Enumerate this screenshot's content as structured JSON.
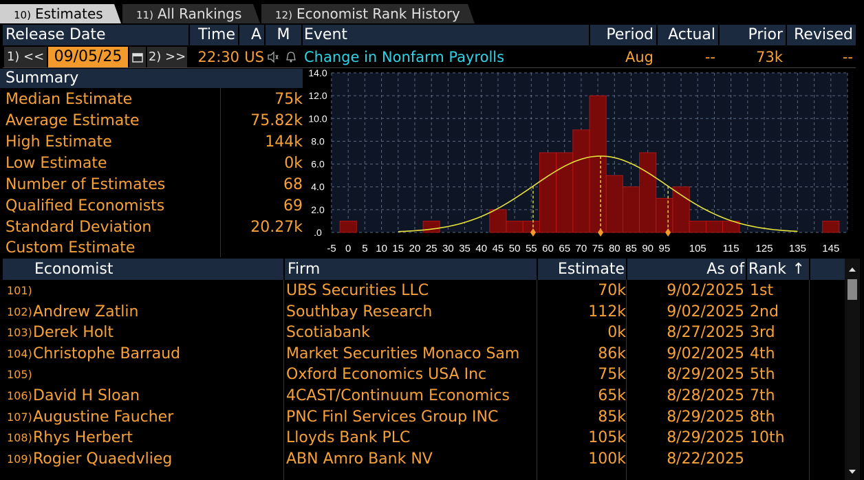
{
  "tabs": [
    {
      "num": "10)",
      "label": "Estimates",
      "active": true
    },
    {
      "num": "11)",
      "label": "All Rankings",
      "active": false
    },
    {
      "num": "12)",
      "label": "Economist Rank History",
      "active": false
    }
  ],
  "header": {
    "release_date": "Release Date",
    "time": "Time",
    "a": "A",
    "m": "M",
    "event": "Event",
    "period": "Period",
    "actual": "Actual",
    "prior": "Prior",
    "revised": "Revised"
  },
  "release_row": {
    "prev_btn": "1) <<",
    "date": "09/05/25",
    "next_btn": "2) >>",
    "time": "22:30",
    "country": "US",
    "event": "Change in Nonfarm Payrolls",
    "period": "Aug",
    "actual": "--",
    "prior": "73k",
    "revised": "--"
  },
  "summary": {
    "title": "Summary",
    "rows": [
      {
        "label": "Median Estimate",
        "value": "75k"
      },
      {
        "label": "Average Estimate",
        "value": "75.82k"
      },
      {
        "label": "High Estimate",
        "value": "144k"
      },
      {
        "label": "Low Estimate",
        "value": "0k"
      },
      {
        "label": "Number of Estimates",
        "value": "68"
      },
      {
        "label": "Qualified Economists",
        "value": "69"
      },
      {
        "label": "Standard Deviation",
        "value": "20.27k"
      },
      {
        "label": "Custom Estimate",
        "value": ""
      }
    ]
  },
  "chart_data": {
    "type": "bar",
    "title": "",
    "xlabel": "",
    "ylabel": "",
    "ylim": [
      0,
      14
    ],
    "xlim": [
      -5,
      150
    ],
    "bin_width": 5,
    "x_tick_labels": [
      "-5",
      "0",
      "5",
      "10",
      "15",
      "20",
      "25",
      "30",
      "35",
      "40",
      "45",
      "50",
      "55",
      "60",
      "65",
      "70",
      "75",
      "80",
      "85",
      "90",
      "95",
      "105",
      "115",
      "125",
      "135",
      "145"
    ],
    "y_tick_labels": [
      ".0",
      "2.0",
      "4.0",
      "6.0",
      "8.0",
      "10.0",
      "12.0",
      "14.0"
    ],
    "bins": [
      {
        "x": 0,
        "value": 1
      },
      {
        "x": 25,
        "value": 1
      },
      {
        "x": 45,
        "value": 2
      },
      {
        "x": 50,
        "value": 1
      },
      {
        "x": 55,
        "value": 1
      },
      {
        "x": 60,
        "value": 7
      },
      {
        "x": 65,
        "value": 7
      },
      {
        "x": 70,
        "value": 9
      },
      {
        "x": 75,
        "value": 12
      },
      {
        "x": 80,
        "value": 5
      },
      {
        "x": 85,
        "value": 4
      },
      {
        "x": 90,
        "value": 7
      },
      {
        "x": 95,
        "value": 3
      },
      {
        "x": 100,
        "value": 4
      },
      {
        "x": 105,
        "value": 1
      },
      {
        "x": 110,
        "value": 1
      },
      {
        "x": 115,
        "value": 1
      },
      {
        "x": 145,
        "value": 1
      }
    ],
    "normal_curve": {
      "mean": 75.82,
      "sd": 20.27,
      "peak": 6.7
    },
    "markers": [
      55.55,
      75.82,
      96.09
    ],
    "grid": true,
    "colors": {
      "bar": "#7a0a0a",
      "curve": "#e6e23a",
      "marker": "#f39a2c",
      "grid": "#5a6a80",
      "plot_bg": "#0e1626"
    }
  },
  "table": {
    "columns": {
      "economist": "Economist",
      "firm": "Firm",
      "estimate": "Estimate",
      "as_of": "As of",
      "rank": "Rank",
      "sort_icon": "↑"
    },
    "rows": [
      {
        "num": "101)",
        "economist": "",
        "firm": "UBS Securities LLC",
        "estimate": "70k",
        "as_of": "9/02/2025",
        "rank": "1st"
      },
      {
        "num": "102)",
        "economist": "Andrew Zatlin",
        "firm": "Southbay Research",
        "estimate": "112k",
        "as_of": "9/02/2025",
        "rank": "2nd"
      },
      {
        "num": "103)",
        "economist": "Derek Holt",
        "firm": "Scotiabank",
        "estimate": "0k",
        "as_of": "8/27/2025",
        "rank": "3rd"
      },
      {
        "num": "104)",
        "economist": "Christophe Barraud",
        "firm": "Market Securities Monaco Sam",
        "estimate": "86k",
        "as_of": "9/02/2025",
        "rank": "4th"
      },
      {
        "num": "105)",
        "economist": "",
        "firm": "Oxford Economics USA Inc",
        "estimate": "75k",
        "as_of": "8/29/2025",
        "rank": "5th"
      },
      {
        "num": "106)",
        "economist": "David H Sloan",
        "firm": "4CAST/Continuum Economics",
        "estimate": "65k",
        "as_of": "8/28/2025",
        "rank": "7th"
      },
      {
        "num": "107)",
        "economist": "Augustine Faucher",
        "firm": "PNC Finl Services Group INC",
        "estimate": "85k",
        "as_of": "8/29/2025",
        "rank": "8th"
      },
      {
        "num": "108)",
        "economist": "Rhys Herbert",
        "firm": "Lloyds Bank PLC",
        "estimate": "105k",
        "as_of": "8/29/2025",
        "rank": "10th"
      },
      {
        "num": "109)",
        "economist": "Rogier Quaedvlieg",
        "firm": "ABN Amro Bank NV",
        "estimate": "100k",
        "as_of": "8/22/2025",
        "rank": ""
      }
    ]
  }
}
